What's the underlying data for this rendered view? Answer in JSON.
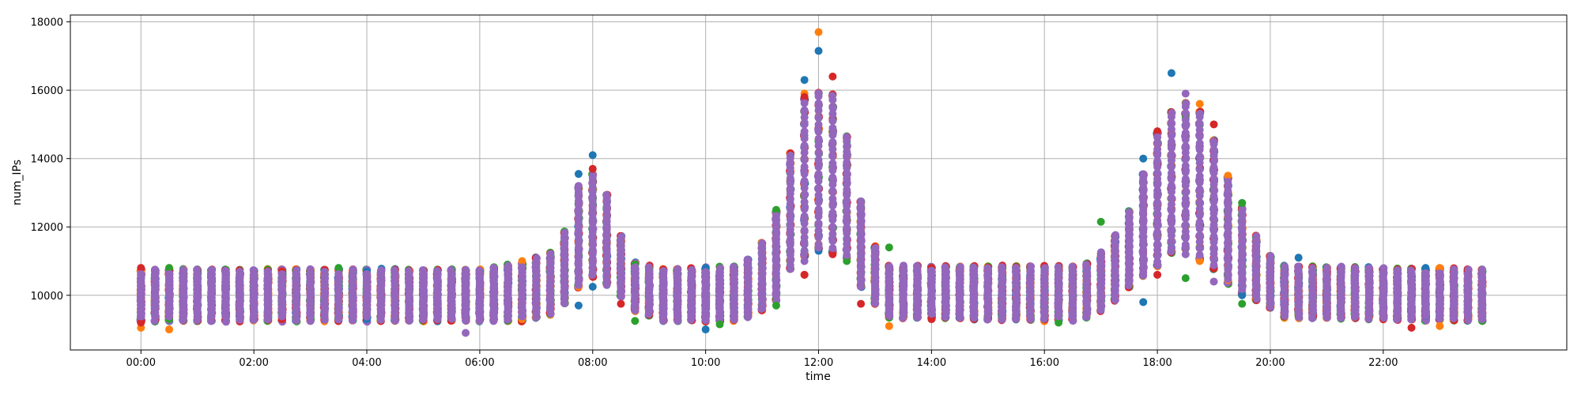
{
  "chart_data": {
    "type": "scatter",
    "title": "",
    "xlabel": "time",
    "ylabel": "num_IPs",
    "grid": true,
    "legend": "none",
    "x_ticks": [
      "00:00",
      "02:00",
      "04:00",
      "06:00",
      "08:00",
      "10:00",
      "12:00",
      "14:00",
      "16:00",
      "18:00",
      "20:00",
      "22:00"
    ],
    "xlim": [
      "-01:15",
      "25:15"
    ],
    "ylim": [
      8400,
      18200
    ],
    "y_ticks": [
      10000,
      12000,
      14000,
      16000,
      18000
    ],
    "y_tick_labels": [
      "10000",
      "12000",
      "14000",
      "16000",
      "18000"
    ],
    "sampling_interval_minutes": 15,
    "series_colors": [
      "#1f77b4",
      "#ff7f0e",
      "#2ca02c",
      "#d62728",
      "#9467bd"
    ],
    "series": [
      {
        "name": "",
        "points": [
          {
            "x": "00:00",
            "y": [
              9400,
              10600
            ]
          },
          {
            "x": "04:00",
            "y": [
              9300,
              10700
            ]
          },
          {
            "x": "07:45",
            "y": [
              9700,
              13550
            ]
          },
          {
            "x": "08:00",
            "y": [
              10250,
              14100
            ]
          },
          {
            "x": "10:00",
            "y": [
              9000,
              10800
            ]
          },
          {
            "x": "11:45",
            "y": [
              11300,
              16300
            ]
          },
          {
            "x": "12:00",
            "y": [
              11300,
              17150
            ]
          },
          {
            "x": "18:15",
            "y": [
              11400,
              16500
            ]
          },
          {
            "x": "17:45",
            "y": [
              9800,
              14000
            ]
          },
          {
            "x": "19:30",
            "y": [
              10000,
              12700
            ]
          },
          {
            "x": "20:30",
            "y": [
              9500,
              11100
            ]
          },
          {
            "x": "22:45",
            "y": [
              9400,
              10800
            ]
          }
        ]
      },
      {
        "name": "",
        "points": [
          {
            "x": "00:00",
            "y": [
              9050,
              10700
            ]
          },
          {
            "x": "00:30",
            "y": [
              9000,
              10600
            ]
          },
          {
            "x": "06:45",
            "y": [
              9300,
              11000
            ]
          },
          {
            "x": "07:45",
            "y": [
              10250,
              12500
            ]
          },
          {
            "x": "11:45",
            "y": [
              10600,
              15900
            ]
          },
          {
            "x": "12:00",
            "y": [
              11500,
              17700
            ]
          },
          {
            "x": "13:15",
            "y": [
              9100,
              10700
            ]
          },
          {
            "x": "18:45",
            "y": [
              11000,
              15600
            ]
          },
          {
            "x": "19:15",
            "y": [
              10450,
              13500
            ]
          },
          {
            "x": "23:00",
            "y": [
              9100,
              10800
            ]
          }
        ]
      },
      {
        "name": "",
        "points": [
          {
            "x": "00:30",
            "y": [
              9300,
              10800
            ]
          },
          {
            "x": "03:30",
            "y": [
              9400,
              10800
            ]
          },
          {
            "x": "08:45",
            "y": [
              9250,
              10900
            ]
          },
          {
            "x": "10:15",
            "y": [
              9150,
              10700
            ]
          },
          {
            "x": "11:15",
            "y": [
              9700,
              12500
            ]
          },
          {
            "x": "12:30",
            "y": [
              11000,
              14500
            ]
          },
          {
            "x": "13:15",
            "y": [
              9750,
              11400
            ]
          },
          {
            "x": "16:15",
            "y": [
              9200,
              10700
            ]
          },
          {
            "x": "17:00",
            "y": [
              9700,
              12150
            ]
          },
          {
            "x": "18:30",
            "y": [
              10500,
              15200
            ]
          },
          {
            "x": "19:30",
            "y": [
              9750,
              12700
            ]
          },
          {
            "x": "23:45",
            "y": [
              9250,
              10700
            ]
          }
        ]
      },
      {
        "name": "",
        "points": [
          {
            "x": "00:00",
            "y": [
              9200,
              10800
            ]
          },
          {
            "x": "02:30",
            "y": [
              9300,
              10700
            ]
          },
          {
            "x": "08:00",
            "y": [
              10800,
              13700
            ]
          },
          {
            "x": "08:30",
            "y": [
              9750,
              11200
            ]
          },
          {
            "x": "11:45",
            "y": [
              10600,
              15800
            ]
          },
          {
            "x": "12:15",
            "y": [
              11200,
              16400
            ]
          },
          {
            "x": "12:45",
            "y": [
              9750,
              12500
            ]
          },
          {
            "x": "14:00",
            "y": [
              9300,
              10800
            ]
          },
          {
            "x": "18:00",
            "y": [
              10600,
              14800
            ]
          },
          {
            "x": "19:00",
            "y": [
              10800,
              15000
            ]
          },
          {
            "x": "22:30",
            "y": [
              9050,
              10600
            ]
          }
        ]
      },
      {
        "name": "",
        "points": [
          {
            "x": "00:00",
            "y": [
              9400,
              10500
            ]
          },
          {
            "x": "05:45",
            "y": [
              8900,
              10600
            ]
          },
          {
            "x": "07:45",
            "y": [
              10300,
              13200
            ]
          },
          {
            "x": "08:15",
            "y": [
              10300,
              12900
            ]
          },
          {
            "x": "11:45",
            "y": [
              11000,
              15000
            ]
          },
          {
            "x": "12:00",
            "y": [
              11400,
              15900
            ]
          },
          {
            "x": "18:30",
            "y": [
              11200,
              15900
            ]
          },
          {
            "x": "19:00",
            "y": [
              10400,
              14100
            ]
          },
          {
            "x": "23:45",
            "y": [
              9300,
              10700
            ]
          }
        ]
      }
    ],
    "envelope": [
      {
        "t": "00:00",
        "lo": 9300,
        "hi": 10700
      },
      {
        "t": "06:00",
        "lo": 9300,
        "hi": 10700
      },
      {
        "t": "06:45",
        "lo": 9300,
        "hi": 10900
      },
      {
        "t": "07:15",
        "lo": 9500,
        "hi": 11200
      },
      {
        "t": "07:30",
        "lo": 9800,
        "hi": 11800
      },
      {
        "t": "07:45",
        "lo": 10300,
        "hi": 13100
      },
      {
        "t": "08:00",
        "lo": 10600,
        "hi": 13500
      },
      {
        "t": "08:15",
        "lo": 10400,
        "hi": 12900
      },
      {
        "t": "08:30",
        "lo": 10000,
        "hi": 11700
      },
      {
        "t": "08:45",
        "lo": 9600,
        "hi": 10900
      },
      {
        "t": "09:15",
        "lo": 9300,
        "hi": 10700
      },
      {
        "t": "10:30",
        "lo": 9300,
        "hi": 10800
      },
      {
        "t": "10:45",
        "lo": 9400,
        "hi": 11000
      },
      {
        "t": "11:00",
        "lo": 9600,
        "hi": 11500
      },
      {
        "t": "11:15",
        "lo": 9900,
        "hi": 12400
      },
      {
        "t": "11:30",
        "lo": 10800,
        "hi": 14100
      },
      {
        "t": "11:45",
        "lo": 11200,
        "hi": 15700
      },
      {
        "t": "12:00",
        "lo": 11400,
        "hi": 15900
      },
      {
        "t": "12:15",
        "lo": 11300,
        "hi": 15800
      },
      {
        "t": "12:30",
        "lo": 11100,
        "hi": 14600
      },
      {
        "t": "12:45",
        "lo": 10300,
        "hi": 12700
      },
      {
        "t": "13:00",
        "lo": 9800,
        "hi": 11400
      },
      {
        "t": "13:15",
        "lo": 9400,
        "hi": 10800
      },
      {
        "t": "16:30",
        "lo": 9300,
        "hi": 10800
      },
      {
        "t": "16:45",
        "lo": 9400,
        "hi": 10900
      },
      {
        "t": "17:00",
        "lo": 9600,
        "hi": 11200
      },
      {
        "t": "17:15",
        "lo": 9900,
        "hi": 11700
      },
      {
        "t": "17:30",
        "lo": 10300,
        "hi": 12400
      },
      {
        "t": "17:45",
        "lo": 10600,
        "hi": 13500
      },
      {
        "t": "18:00",
        "lo": 10900,
        "hi": 14700
      },
      {
        "t": "18:15",
        "lo": 11300,
        "hi": 15300
      },
      {
        "t": "18:30",
        "lo": 11400,
        "hi": 15600
      },
      {
        "t": "18:45",
        "lo": 11100,
        "hi": 15300
      },
      {
        "t": "19:00",
        "lo": 10800,
        "hi": 14500
      },
      {
        "t": "19:15",
        "lo": 10400,
        "hi": 13400
      },
      {
        "t": "19:30",
        "lo": 10100,
        "hi": 12500
      },
      {
        "t": "19:45",
        "lo": 9900,
        "hi": 11700
      },
      {
        "t": "20:00",
        "lo": 9700,
        "hi": 11100
      },
      {
        "t": "20:15",
        "lo": 9400,
        "hi": 10800
      },
      {
        "t": "23:45",
        "lo": 9300,
        "hi": 10700
      }
    ]
  }
}
